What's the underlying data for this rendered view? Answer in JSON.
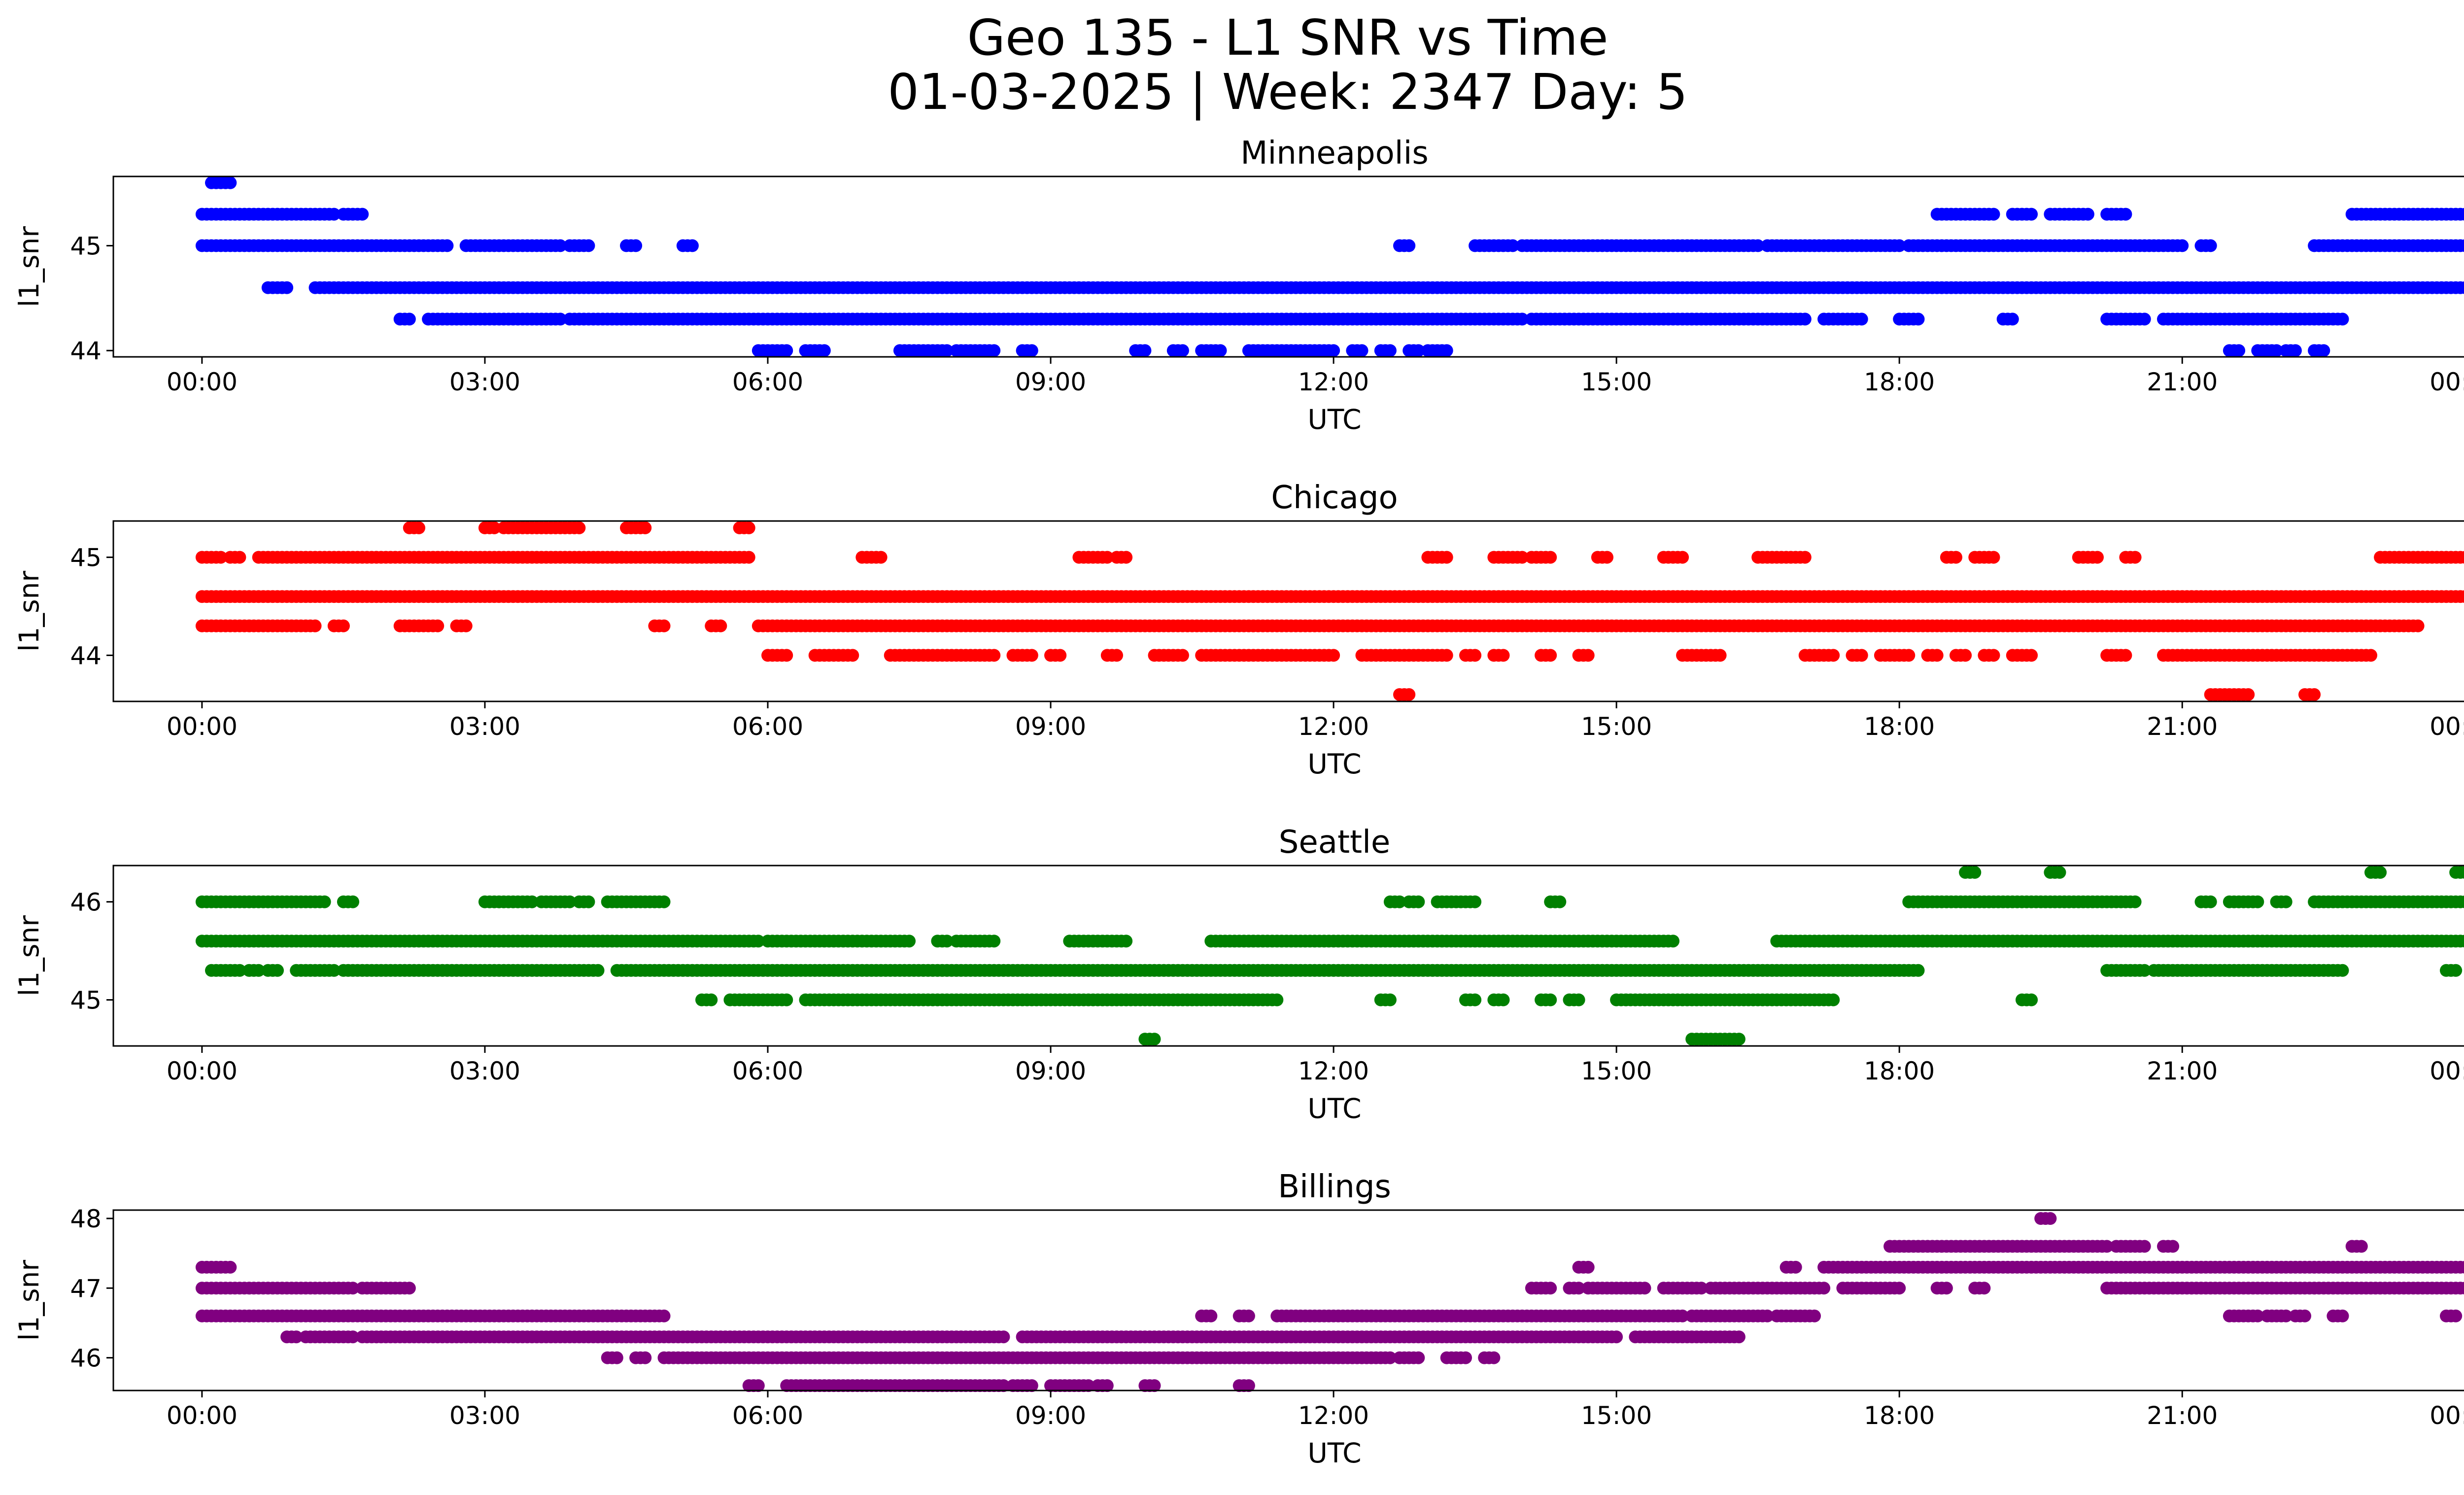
{
  "figure": {
    "title_line1": "Geo 135 - L1 SNR vs Time",
    "title_line2": "01-03-2025 | Week: 2347 Day: 5"
  },
  "chart_data": [
    {
      "type": "scatter",
      "title": "Minneapolis",
      "xlabel": "UTC",
      "ylabel": "l1_snr",
      "color": "#0000ff",
      "xlim": [
        -0.94,
        24.96
      ],
      "ylim": [
        43.94,
        45.66
      ],
      "xticks": [
        0,
        3,
        6,
        9,
        12,
        15,
        18,
        21,
        24
      ],
      "xtick_labels": [
        "00:00",
        "03:00",
        "06:00",
        "09:00",
        "12:00",
        "15:00",
        "18:00",
        "21:00",
        "00:00"
      ],
      "yticks": [
        44,
        45
      ],
      "runs": [
        {
          "y": 45.6,
          "segments": [
            [
              0.1,
              0.3
            ]
          ]
        },
        {
          "y": 45.3,
          "segments": [
            [
              0.0,
              1.4
            ],
            [
              1.5,
              1.7
            ],
            [
              18.4,
              19.0
            ],
            [
              19.2,
              19.4
            ],
            [
              19.6,
              20.0
            ],
            [
              20.2,
              20.4
            ],
            [
              22.8,
              24.0
            ]
          ]
        },
        {
          "y": 45.0,
          "segments": [
            [
              0.0,
              2.6
            ],
            [
              2.8,
              3.8
            ],
            [
              3.9,
              4.1
            ],
            [
              4.5,
              4.6
            ],
            [
              5.1,
              5.2
            ],
            [
              12.7,
              12.8
            ],
            [
              13.5,
              13.9
            ],
            [
              14.0,
              16.5
            ],
            [
              16.6,
              18.0
            ],
            [
              18.1,
              21.0
            ],
            [
              21.2,
              21.3
            ],
            [
              22.4,
              24.0
            ]
          ]
        },
        {
          "y": 44.6,
          "segments": [
            [
              0.7,
              0.9
            ],
            [
              1.2,
              24.0
            ]
          ]
        },
        {
          "y": 44.3,
          "segments": [
            [
              2.1,
              2.2
            ],
            [
              2.4,
              3.8
            ],
            [
              3.9,
              14.0
            ],
            [
              14.1,
              17.0
            ],
            [
              17.2,
              17.6
            ],
            [
              18.0,
              18.2
            ],
            [
              19.1,
              19.2
            ],
            [
              20.2,
              20.6
            ],
            [
              20.8,
              22.7
            ]
          ]
        },
        {
          "y": 44.0,
          "segments": [
            [
              5.9,
              6.2
            ],
            [
              6.4,
              6.6
            ],
            [
              7.4,
              7.9
            ],
            [
              8.0,
              8.4
            ],
            [
              8.7,
              8.8
            ],
            [
              9.9,
              10.0
            ],
            [
              10.3,
              10.4
            ],
            [
              10.6,
              10.8
            ],
            [
              11.1,
              12.0
            ],
            [
              12.2,
              12.3
            ],
            [
              12.5,
              12.6
            ],
            [
              12.8,
              12.9
            ],
            [
              13.0,
              13.2
            ],
            [
              21.5,
              21.6
            ],
            [
              21.8,
              22.0
            ],
            [
              22.1,
              22.2
            ],
            [
              22.4,
              22.5
            ]
          ]
        }
      ]
    },
    {
      "type": "scatter",
      "title": "Chicago",
      "xlabel": "UTC",
      "ylabel": "l1_snr",
      "color": "#ff0000",
      "xlim": [
        -0.94,
        24.96
      ],
      "ylim": [
        43.53,
        45.37
      ],
      "xticks": [
        0,
        3,
        6,
        9,
        12,
        15,
        18,
        21,
        24
      ],
      "xtick_labels": [
        "00:00",
        "03:00",
        "06:00",
        "09:00",
        "12:00",
        "15:00",
        "18:00",
        "21:00",
        "00:00"
      ],
      "yticks": [
        44,
        45
      ],
      "runs": [
        {
          "y": 45.3,
          "segments": [
            [
              2.2,
              2.3
            ],
            [
              3.0,
              3.1
            ],
            [
              3.2,
              4.0
            ],
            [
              4.5,
              4.7
            ],
            [
              5.7,
              5.8
            ]
          ]
        },
        {
          "y": 45.0,
          "segments": [
            [
              0.0,
              0.2
            ],
            [
              0.3,
              0.4
            ],
            [
              0.6,
              5.8
            ],
            [
              7.0,
              7.2
            ],
            [
              9.3,
              9.6
            ],
            [
              9.7,
              9.8
            ],
            [
              13.0,
              13.2
            ],
            [
              13.7,
              14.0
            ],
            [
              14.1,
              14.3
            ],
            [
              14.8,
              14.9
            ],
            [
              15.5,
              15.7
            ],
            [
              16.5,
              17.0
            ],
            [
              18.5,
              18.6
            ],
            [
              18.8,
              19.0
            ],
            [
              19.9,
              20.1
            ],
            [
              20.4,
              20.5
            ],
            [
              23.1,
              24.0
            ]
          ]
        },
        {
          "y": 44.6,
          "segments": [
            [
              0.0,
              24.0
            ]
          ]
        },
        {
          "y": 44.3,
          "segments": [
            [
              0.0,
              1.2
            ],
            [
              1.4,
              1.5
            ],
            [
              2.1,
              2.5
            ],
            [
              2.7,
              2.8
            ],
            [
              4.8,
              4.9
            ],
            [
              5.4,
              5.5
            ],
            [
              5.9,
              23.5
            ]
          ]
        },
        {
          "y": 44.0,
          "segments": [
            [
              6.0,
              6.2
            ],
            [
              6.5,
              6.9
            ],
            [
              7.3,
              8.4
            ],
            [
              8.6,
              8.8
            ],
            [
              9.0,
              9.1
            ],
            [
              9.6,
              9.7
            ],
            [
              10.1,
              10.4
            ],
            [
              10.6,
              12.0
            ],
            [
              12.3,
              13.2
            ],
            [
              13.4,
              13.5
            ],
            [
              13.7,
              13.8
            ],
            [
              14.2,
              14.3
            ],
            [
              14.6,
              14.7
            ],
            [
              15.7,
              16.1
            ],
            [
              17.0,
              17.3
            ],
            [
              17.5,
              17.6
            ],
            [
              17.8,
              18.1
            ],
            [
              18.3,
              18.4
            ],
            [
              18.6,
              18.7
            ],
            [
              18.9,
              19.0
            ],
            [
              19.2,
              19.4
            ],
            [
              20.2,
              20.4
            ],
            [
              20.8,
              23.0
            ]
          ]
        },
        {
          "y": 43.6,
          "segments": [
            [
              12.7,
              12.8
            ],
            [
              21.3,
              21.7
            ],
            [
              22.3,
              22.4
            ]
          ]
        }
      ]
    },
    {
      "type": "scatter",
      "title": "Seattle",
      "xlabel": "UTC",
      "ylabel": "l1_snr",
      "color": "#008000",
      "xlim": [
        -0.94,
        24.96
      ],
      "ylim": [
        44.53,
        46.37
      ],
      "xticks": [
        0,
        3,
        6,
        9,
        12,
        15,
        18,
        21,
        24
      ],
      "xtick_labels": [
        "00:00",
        "03:00",
        "06:00",
        "09:00",
        "12:00",
        "15:00",
        "18:00",
        "21:00",
        "00:00"
      ],
      "yticks": [
        45,
        46
      ],
      "runs": [
        {
          "y": 46.3,
          "segments": [
            [
              18.7,
              18.8
            ],
            [
              19.6,
              19.7
            ],
            [
              23.0,
              23.1
            ],
            [
              23.9,
              24.0
            ]
          ]
        },
        {
          "y": 46.0,
          "segments": [
            [
              0.0,
              1.3
            ],
            [
              1.5,
              1.6
            ],
            [
              3.0,
              3.5
            ],
            [
              3.6,
              3.9
            ],
            [
              4.0,
              4.1
            ],
            [
              4.3,
              4.9
            ],
            [
              12.6,
              12.7
            ],
            [
              12.8,
              12.9
            ],
            [
              13.1,
              13.5
            ],
            [
              14.3,
              14.4
            ],
            [
              18.1,
              20.5
            ],
            [
              21.2,
              21.3
            ],
            [
              21.5,
              21.8
            ],
            [
              22.0,
              22.1
            ],
            [
              22.4,
              24.0
            ]
          ]
        },
        {
          "y": 45.6,
          "segments": [
            [
              0.0,
              5.9
            ],
            [
              6.0,
              7.5
            ],
            [
              7.8,
              7.9
            ],
            [
              8.0,
              8.4
            ],
            [
              9.2,
              9.8
            ],
            [
              10.7,
              15.6
            ],
            [
              16.7,
              24.0
            ]
          ]
        },
        {
          "y": 45.3,
          "segments": [
            [
              0.1,
              0.4
            ],
            [
              0.5,
              0.6
            ],
            [
              0.7,
              0.8
            ],
            [
              1.0,
              1.4
            ],
            [
              1.5,
              4.2
            ],
            [
              4.4,
              18.2
            ],
            [
              20.2,
              20.6
            ],
            [
              20.7,
              22.7
            ],
            [
              23.8,
              23.9
            ]
          ]
        },
        {
          "y": 45.0,
          "segments": [
            [
              5.3,
              5.4
            ],
            [
              5.6,
              6.2
            ],
            [
              6.4,
              11.4
            ],
            [
              12.5,
              12.6
            ],
            [
              13.4,
              13.5
            ],
            [
              13.7,
              13.8
            ],
            [
              14.2,
              14.3
            ],
            [
              14.5,
              14.6
            ],
            [
              15.0,
              17.3
            ],
            [
              19.3,
              19.4
            ]
          ]
        },
        {
          "y": 44.6,
          "segments": [
            [
              10.0,
              10.1
            ],
            [
              15.8,
              16.3
            ]
          ]
        }
      ]
    },
    {
      "type": "scatter",
      "title": "Billings",
      "xlabel": "UTC",
      "ylabel": "l1_snr",
      "color": "#800080",
      "xlim": [
        -0.94,
        24.96
      ],
      "ylim": [
        45.53,
        48.12
      ],
      "xticks": [
        0,
        3,
        6,
        9,
        12,
        15,
        18,
        21,
        24
      ],
      "xtick_labels": [
        "00:00",
        "03:00",
        "06:00",
        "09:00",
        "12:00",
        "15:00",
        "18:00",
        "21:00",
        "00:00"
      ],
      "yticks": [
        46,
        47,
        48
      ],
      "runs": [
        {
          "y": 48.0,
          "segments": [
            [
              19.5,
              19.6
            ]
          ]
        },
        {
          "y": 47.6,
          "segments": [
            [
              17.9,
              20.2
            ],
            [
              20.3,
              20.6
            ],
            [
              20.8,
              20.9
            ],
            [
              22.8,
              22.9
            ]
          ]
        },
        {
          "y": 47.3,
          "segments": [
            [
              0.0,
              0.3
            ],
            [
              14.6,
              14.7
            ],
            [
              16.8,
              16.9
            ],
            [
              17.2,
              24.0
            ]
          ]
        },
        {
          "y": 47.0,
          "segments": [
            [
              0.0,
              1.6
            ],
            [
              1.7,
              2.2
            ],
            [
              14.1,
              14.3
            ],
            [
              14.5,
              14.6
            ],
            [
              14.7,
              15.3
            ],
            [
              15.5,
              15.9
            ],
            [
              16.0,
              17.2
            ],
            [
              17.4,
              18.0
            ],
            [
              18.4,
              18.5
            ],
            [
              18.8,
              18.9
            ],
            [
              20.2,
              24.0
            ]
          ]
        },
        {
          "y": 46.6,
          "segments": [
            [
              0.0,
              4.9
            ],
            [
              10.6,
              10.7
            ],
            [
              11.0,
              11.1
            ],
            [
              11.4,
              15.7
            ],
            [
              15.8,
              16.6
            ],
            [
              16.7,
              17.1
            ],
            [
              21.5,
              21.8
            ],
            [
              21.9,
              22.1
            ],
            [
              22.2,
              22.3
            ],
            [
              22.6,
              22.7
            ],
            [
              23.8,
              23.9
            ]
          ]
        },
        {
          "y": 46.3,
          "segments": [
            [
              0.9,
              1.0
            ],
            [
              1.1,
              1.6
            ],
            [
              1.7,
              8.5
            ],
            [
              8.7,
              15.0
            ],
            [
              15.2,
              16.3
            ]
          ]
        },
        {
          "y": 46.0,
          "segments": [
            [
              4.3,
              4.4
            ],
            [
              4.6,
              4.7
            ],
            [
              4.9,
              12.6
            ],
            [
              12.7,
              12.9
            ],
            [
              13.2,
              13.4
            ],
            [
              13.6,
              13.7
            ]
          ]
        },
        {
          "y": 45.6,
          "segments": [
            [
              5.8,
              5.9
            ],
            [
              6.2,
              8.5
            ],
            [
              8.6,
              8.8
            ],
            [
              9.0,
              9.4
            ],
            [
              9.5,
              9.6
            ],
            [
              10.0,
              10.1
            ],
            [
              11.0,
              11.1
            ]
          ]
        }
      ]
    }
  ]
}
